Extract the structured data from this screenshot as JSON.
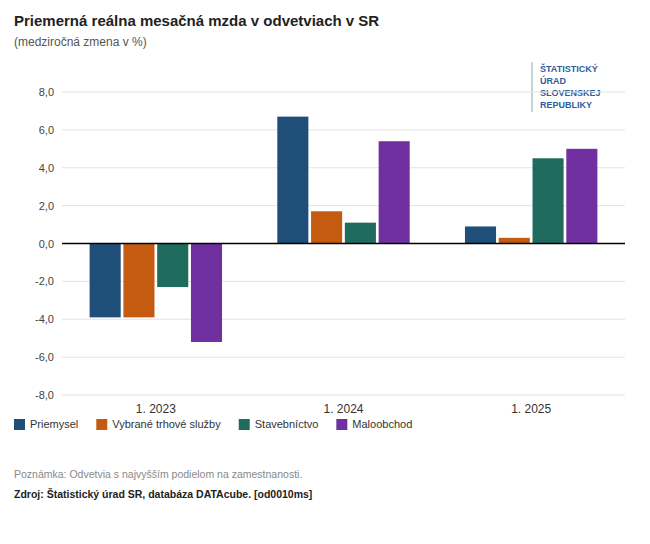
{
  "chart_data": {
    "type": "bar",
    "title": "Priemerná reálna mesačná mzda v odvetviach v SR",
    "subtitle": "(medziročná zmena v %)",
    "categories": [
      "1. 2023",
      "1. 2024",
      "1. 2025"
    ],
    "series": [
      {
        "name": "Priemysel",
        "color": "#1F4E79",
        "values": [
          -3.9,
          6.7,
          0.9
        ]
      },
      {
        "name": "Vybrané trhové služby",
        "color": "#C55A11",
        "values": [
          -3.9,
          1.7,
          0.3
        ]
      },
      {
        "name": "Stavebníctvo",
        "color": "#1F6B5E",
        "values": [
          -2.3,
          1.1,
          4.5
        ]
      },
      {
        "name": "Maloobchod",
        "color": "#7030A0",
        "values": [
          -5.2,
          5.4,
          5.0
        ]
      }
    ],
    "ylim": [
      -8.0,
      8.0
    ],
    "yticks": [
      {
        "value": -8.0,
        "label": "-8,0"
      },
      {
        "value": -6.0,
        "label": "-6,0"
      },
      {
        "value": -4.0,
        "label": "-4,0"
      },
      {
        "value": -2.0,
        "label": "-2,0"
      },
      {
        "value": 0.0,
        "label": "0,0"
      },
      {
        "value": 2.0,
        "label": "2,0"
      },
      {
        "value": 4.0,
        "label": "4,0"
      },
      {
        "value": 6.0,
        "label": "6,0"
      },
      {
        "value": 8.0,
        "label": "8,0"
      }
    ],
    "grid": true,
    "legend": "bottom",
    "annotations": [
      "Poznámka: Odvetvia s najvyšším podielom na zamestnanosti.",
      "Zdroj: Štatistický úrad SR, databáza DATAcube. [od0010ms]",
      "ŠTATISTICKÝ",
      "ÚRAD",
      "SLOVENSKEJ",
      "REPUBLIKY"
    ]
  }
}
